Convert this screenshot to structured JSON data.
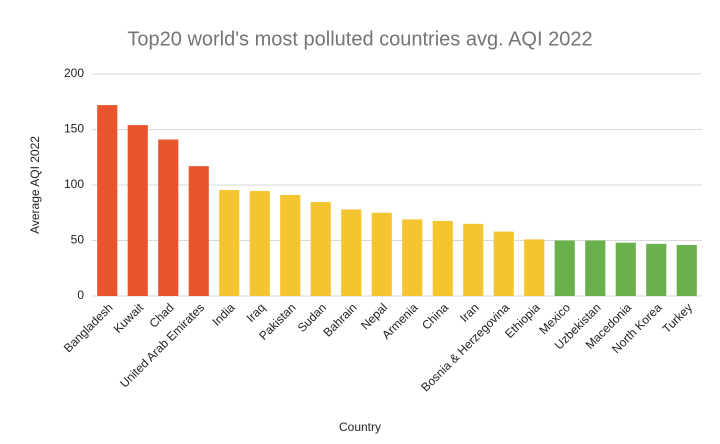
{
  "chart_data": {
    "type": "bar",
    "title": "Top20 world's most polluted countries avg. AQI 2022",
    "x_label": "Country",
    "y_label": "Average AQI 2022",
    "categories": [
      "Bangladesh",
      "Kuwait",
      "Chad",
      "United Arab Emirates",
      "India",
      "Iraq",
      "Pakistan",
      "Sudan",
      "Bahrain",
      "Nepal",
      "Armenia",
      "China",
      "Iran",
      "Bosnia & Herzegovina",
      "Ethiopia",
      "Mexico",
      "Uzbekistan",
      "Macedonia",
      "North Korea",
      "Turkey"
    ],
    "values": [
      172,
      154,
      141,
      117,
      95.5,
      94.6,
      91,
      84.7,
      78,
      75,
      69,
      67.6,
      65,
      58,
      51,
      50,
      50,
      48,
      47,
      46
    ],
    "colors": [
      "#e8552d",
      "#e8552d",
      "#e8552d",
      "#e8552d",
      "#f4c431",
      "#f4c431",
      "#f4c431",
      "#f4c431",
      "#f4c431",
      "#f4c431",
      "#f4c431",
      "#f4c431",
      "#f4c431",
      "#f4c431",
      "#f4c431",
      "#6ab04c",
      "#6ab04c",
      "#6ab04c",
      "#6ab04c",
      "#6ab04c"
    ],
    "ylim": [
      0,
      200
    ],
    "yticks": [
      0,
      50,
      100,
      150,
      200
    ],
    "grid": true
  }
}
